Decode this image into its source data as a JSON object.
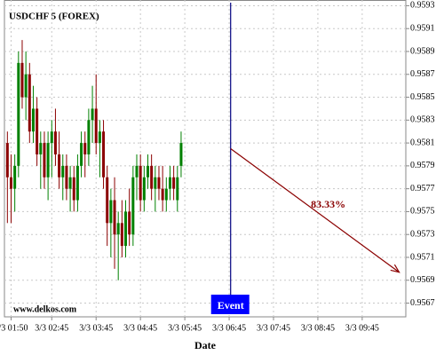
{
  "chart_data": {
    "type": "candlestick",
    "title": "USDCHF 5 (FOREX)",
    "watermark": "www.delkos.com",
    "x_label": "Date",
    "up_color": "#008000",
    "down_color": "#8b0000",
    "grid": true,
    "x": [
      105,
      110,
      115,
      120,
      125,
      130,
      135,
      140,
      145,
      150,
      155,
      160,
      165,
      170,
      175,
      180,
      185,
      190,
      195,
      200,
      205,
      210,
      215,
      220,
      225,
      230,
      235,
      240,
      245,
      250,
      255,
      260,
      265,
      270,
      275,
      280,
      285,
      290,
      295,
      300,
      305,
      310,
      315,
      320,
      325,
      330,
      335,
      340
    ],
    "open": [
      0.9581,
      0.9578,
      0.9577,
      0.9579,
      0.9588,
      0.9585,
      0.9587,
      0.9582,
      0.9584,
      0.958,
      0.9581,
      0.9578,
      0.9581,
      0.9582,
      0.958,
      0.9578,
      0.9579,
      0.9577,
      0.9578,
      0.9576,
      0.9579,
      0.9581,
      0.958,
      0.9583,
      0.9584,
      0.9581,
      0.9582,
      0.9578,
      0.9574,
      0.9576,
      0.9573,
      0.9574,
      0.9572,
      0.9575,
      0.9573,
      0.9578,
      0.9579,
      0.9576,
      0.9578,
      0.9579,
      0.9577,
      0.9578,
      0.9577,
      0.9576,
      0.9577,
      0.9578,
      0.9576,
      0.9579
    ],
    "high": [
      0.9582,
      0.958,
      0.958,
      0.9589,
      0.959,
      0.9589,
      0.9588,
      0.9586,
      0.9585,
      0.9582,
      0.9582,
      0.9582,
      0.9583,
      0.9584,
      0.9582,
      0.958,
      0.958,
      0.9579,
      0.9579,
      0.958,
      0.9582,
      0.9582,
      0.9584,
      0.9586,
      0.9587,
      0.9583,
      0.9583,
      0.9579,
      0.9577,
      0.9578,
      0.9575,
      0.9576,
      0.9576,
      0.9577,
      0.9579,
      0.958,
      0.958,
      0.9579,
      0.958,
      0.958,
      0.9579,
      0.9579,
      0.9579,
      0.9578,
      0.9579,
      0.9579,
      0.9579,
      0.9582
    ],
    "low": [
      0.9574,
      0.9574,
      0.9575,
      0.9578,
      0.9584,
      0.9583,
      0.9581,
      0.9581,
      0.9579,
      0.9577,
      0.9577,
      0.9576,
      0.9578,
      0.9579,
      0.9577,
      0.9576,
      0.9576,
      0.9575,
      0.9575,
      0.9575,
      0.9578,
      0.9578,
      0.9579,
      0.9581,
      0.958,
      0.9578,
      0.9577,
      0.9572,
      0.9571,
      0.957,
      0.9569,
      0.9571,
      0.9571,
      0.9572,
      0.9572,
      0.9576,
      0.9575,
      0.9575,
      0.9577,
      0.9576,
      0.9575,
      0.9576,
      0.9575,
      0.9575,
      0.9576,
      0.9576,
      0.9575,
      0.9578
    ],
    "close": [
      0.9578,
      0.9577,
      0.9579,
      0.9588,
      0.9585,
      0.9587,
      0.9582,
      0.9584,
      0.958,
      0.9581,
      0.9578,
      0.9581,
      0.9582,
      0.958,
      0.9578,
      0.9579,
      0.9577,
      0.9578,
      0.9576,
      0.9579,
      0.9581,
      0.958,
      0.9583,
      0.9584,
      0.9581,
      0.9582,
      0.9578,
      0.9574,
      0.9576,
      0.9573,
      0.9574,
      0.9572,
      0.9575,
      0.9573,
      0.9578,
      0.9579,
      0.9576,
      0.9578,
      0.9579,
      0.9577,
      0.9578,
      0.9577,
      0.9576,
      0.9577,
      0.9578,
      0.9577,
      0.9578,
      0.9581
    ],
    "xlim": [
      101,
      644
    ],
    "xticks": [
      {
        "value": 110,
        "label": "3/3 01:50"
      },
      {
        "value": 165,
        "label": "3/3 02:45"
      },
      {
        "value": 225,
        "label": "3/3 03:45"
      },
      {
        "value": 285,
        "label": "3/3 04:45"
      },
      {
        "value": 345,
        "label": "3/3 05:45"
      },
      {
        "value": 405,
        "label": "3/3 06:45"
      },
      {
        "value": 465,
        "label": "3/3 07:45"
      },
      {
        "value": 525,
        "label": "3/3 08:45"
      },
      {
        "value": 585,
        "label": "3/3 09:45"
      }
    ],
    "ylim": [
      0.95658,
      0.95935
    ],
    "yticks": [
      0.9567,
      0.9569,
      0.9571,
      0.9573,
      0.9575,
      0.9577,
      0.9579,
      0.9581,
      0.9583,
      0.9585,
      0.9587,
      0.9589,
      0.9591,
      0.9593
    ],
    "event": {
      "label": "Event",
      "x": 407,
      "color": "#000080",
      "box_color": "#0000ff"
    },
    "forecast": {
      "x": [
        407,
        635
      ],
      "y": [
        0.95805,
        0.95697
      ],
      "label": "83.33%",
      "color": "#8b0000"
    }
  }
}
